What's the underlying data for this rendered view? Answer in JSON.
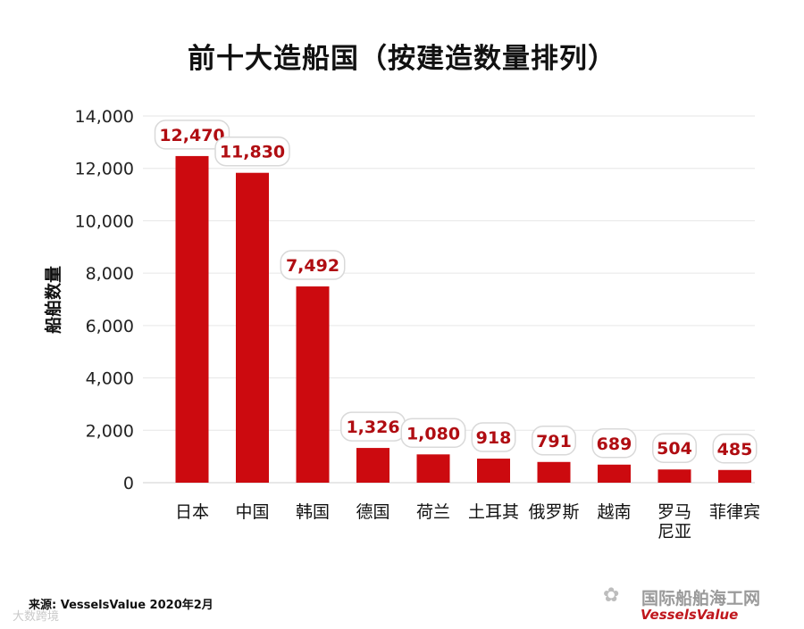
{
  "title": "前十大造船国（按建造数量排列）",
  "source": "来源: VesselsValue 2020年2月",
  "watermark_left": "大数跨境",
  "watermark_right": "国际船舶海工网",
  "watermark_logo": "VesselsValue",
  "colors": {
    "bar": "#cc0a0f",
    "label_text": "#b00d12",
    "grid": "#e6e6e6"
  },
  "chart_data": {
    "type": "bar",
    "title": "前十大造船国（按建造数量排列）",
    "xlabel": "",
    "ylabel": "船舶数量",
    "categories": [
      "日本",
      "中国",
      "韩国",
      "德国",
      "荷兰",
      "土耳其",
      "俄罗斯",
      "越南",
      "罗马尼亚",
      "菲律宾"
    ],
    "values": [
      12470,
      11830,
      7492,
      1326,
      1080,
      918,
      791,
      689,
      504,
      485
    ],
    "value_labels": [
      "12,470",
      "11,830",
      "7,492",
      "1,326",
      "1,080",
      "918",
      "791",
      "689",
      "504",
      "485"
    ],
    "ylim": [
      0,
      14000
    ],
    "yticks": [
      0,
      2000,
      4000,
      6000,
      8000,
      10000,
      12000,
      14000
    ],
    "ytick_labels": [
      "0",
      "2,000",
      "4,000",
      "6,000",
      "8,000",
      "10,000",
      "12,000",
      "14,000"
    ],
    "grid": true,
    "legend": "none"
  }
}
